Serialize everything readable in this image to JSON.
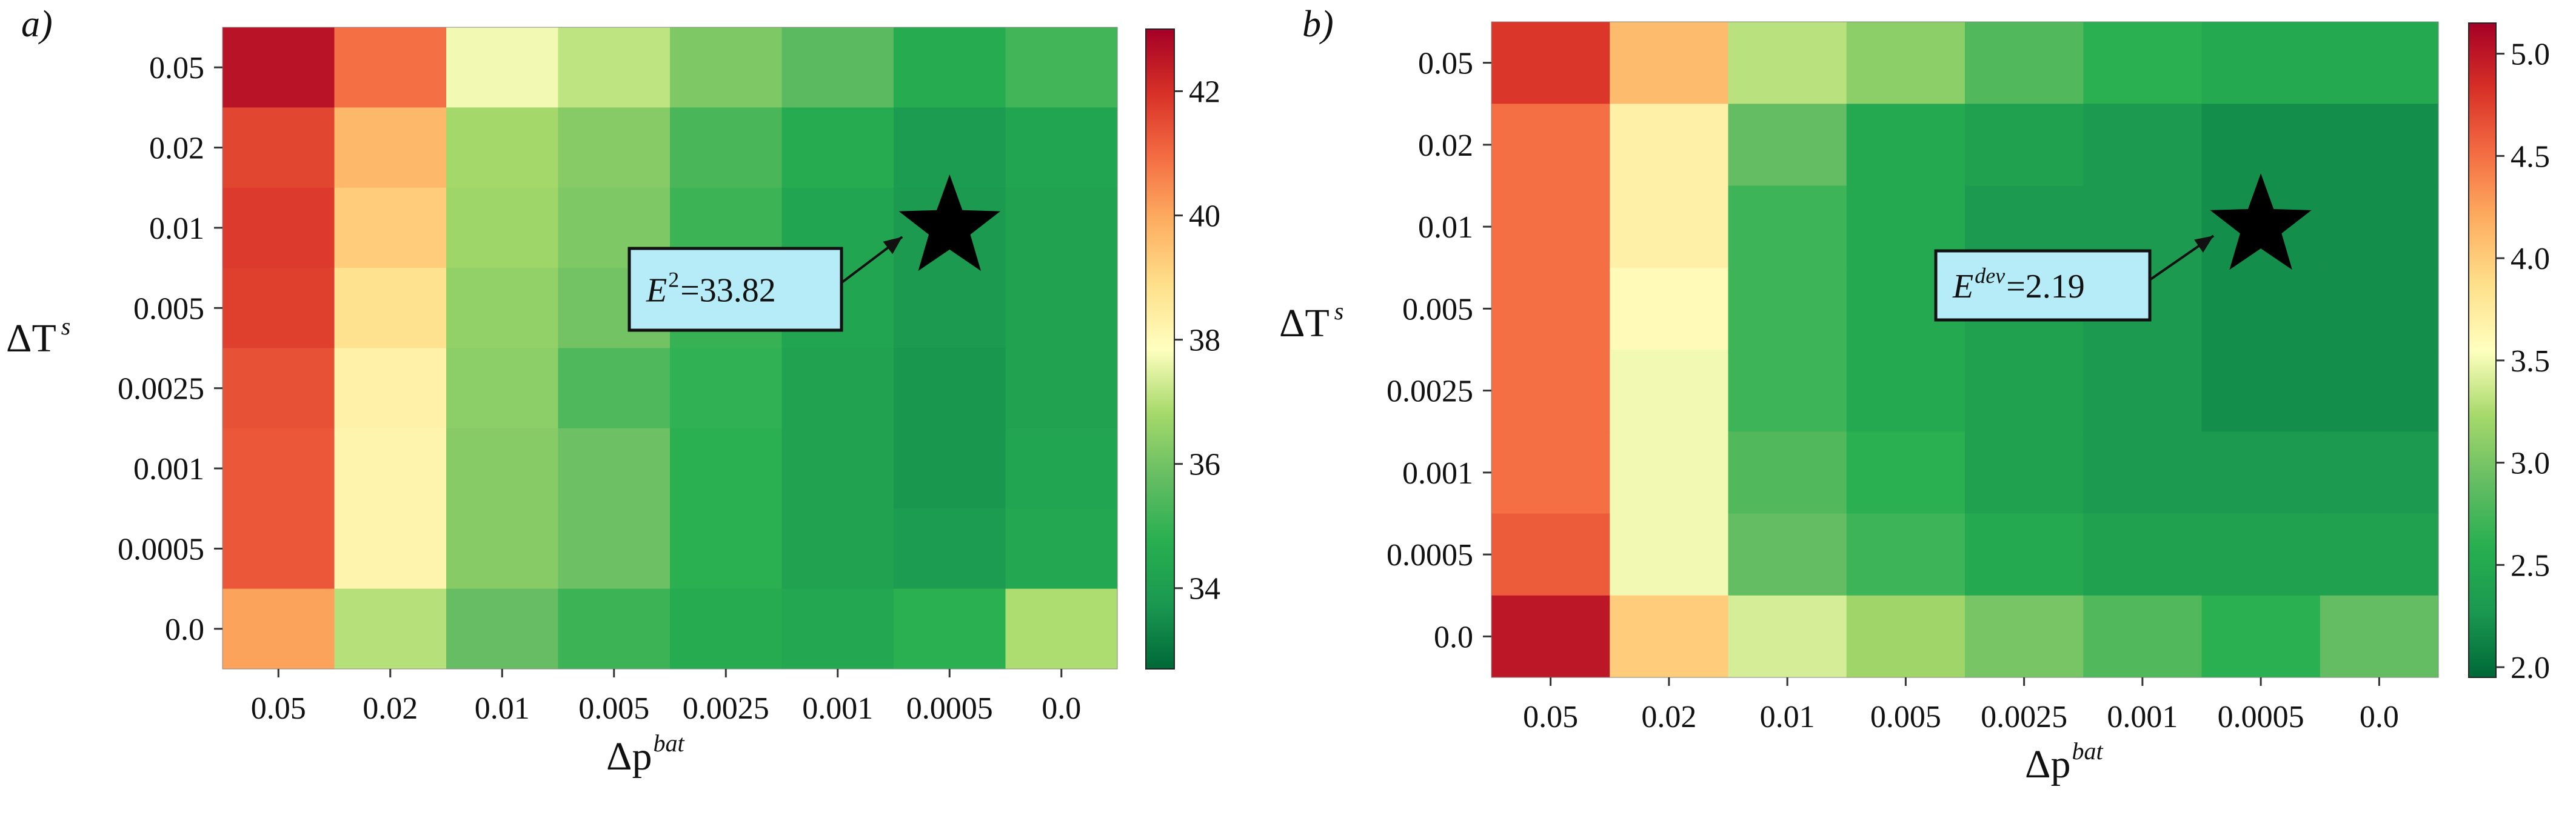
{
  "chart_data": [
    {
      "type": "heatmap",
      "panel_label": "a)",
      "xlabel_base": "Δp",
      "xlabel_sup": "bat",
      "ylabel_base": "ΔT",
      "ylabel_sup": "s",
      "x_categories": [
        "0.05",
        "0.02",
        "0.01",
        "0.005",
        "0.0025",
        "0.001",
        "0.0005",
        "0.0"
      ],
      "y_categories": [
        "0.05",
        "0.02",
        "0.01",
        "0.005",
        "0.0025",
        "0.001",
        "0.0005",
        "0.0"
      ],
      "values": [
        [
          42.6,
          40.9,
          37.7,
          37.1,
          36.2,
          35.6,
          34.6,
          35.2
        ],
        [
          41.6,
          39.7,
          36.8,
          36.3,
          35.3,
          34.6,
          33.9,
          34.3
        ],
        [
          41.8,
          39.3,
          36.7,
          36.2,
          35.1,
          34.3,
          33.8,
          34.2
        ],
        [
          41.7,
          38.8,
          36.5,
          36.0,
          35.0,
          34.3,
          33.8,
          34.2
        ],
        [
          41.4,
          38.3,
          36.4,
          35.4,
          34.9,
          34.2,
          33.7,
          34.2
        ],
        [
          41.3,
          38.2,
          36.3,
          35.9,
          34.8,
          34.2,
          33.7,
          34.3
        ],
        [
          41.3,
          38.2,
          36.3,
          35.9,
          34.8,
          34.2,
          33.9,
          34.4
        ],
        [
          40.1,
          37.0,
          35.8,
          35.1,
          34.6,
          34.4,
          34.8,
          36.9
        ]
      ],
      "colorbar": {
        "min": 32.7,
        "max": 43.0,
        "ticks": [
          34,
          36,
          38,
          40,
          42
        ]
      },
      "marker": {
        "type": "star",
        "col": 6,
        "row": 2
      },
      "annotation": {
        "base": "E",
        "sup": "2",
        "rest": "=33.82"
      }
    },
    {
      "type": "heatmap",
      "panel_label": "b)",
      "xlabel_base": "Δp",
      "xlabel_sup": "bat",
      "ylabel_base": "ΔT",
      "ylabel_sup": "s",
      "x_categories": [
        "0.05",
        "0.02",
        "0.01",
        "0.005",
        "0.0025",
        "0.001",
        "0.0005",
        "0.0"
      ],
      "y_categories": [
        "0.05",
        "0.02",
        "0.01",
        "0.005",
        "0.0025",
        "0.001",
        "0.0005",
        "0.0"
      ],
      "values": [
        [
          4.8,
          4.1,
          3.3,
          3.1,
          2.8,
          2.6,
          2.5,
          2.5
        ],
        [
          4.5,
          3.7,
          2.9,
          2.5,
          2.4,
          2.3,
          2.2,
          2.2
        ],
        [
          4.5,
          3.7,
          2.7,
          2.5,
          2.3,
          2.3,
          2.2,
          2.2
        ],
        [
          4.5,
          3.6,
          2.7,
          2.5,
          2.4,
          2.3,
          2.2,
          2.2
        ],
        [
          4.5,
          3.5,
          2.7,
          2.5,
          2.4,
          2.3,
          2.2,
          2.2
        ],
        [
          4.5,
          3.5,
          2.8,
          2.6,
          2.4,
          2.3,
          2.3,
          2.3
        ],
        [
          4.6,
          3.5,
          2.9,
          2.7,
          2.5,
          2.4,
          2.4,
          2.4
        ],
        [
          5.0,
          4.0,
          3.4,
          3.2,
          3.0,
          2.8,
          2.6,
          2.9
        ]
      ],
      "colorbar": {
        "min": 1.95,
        "max": 5.15,
        "ticks": [
          2.0,
          2.5,
          3.0,
          3.5,
          4.0,
          4.5,
          5.0
        ]
      },
      "marker": {
        "type": "star",
        "col": 6,
        "row": 2
      },
      "annotation": {
        "base": "E",
        "sup": "dev",
        "rest": "=2.19"
      }
    }
  ]
}
